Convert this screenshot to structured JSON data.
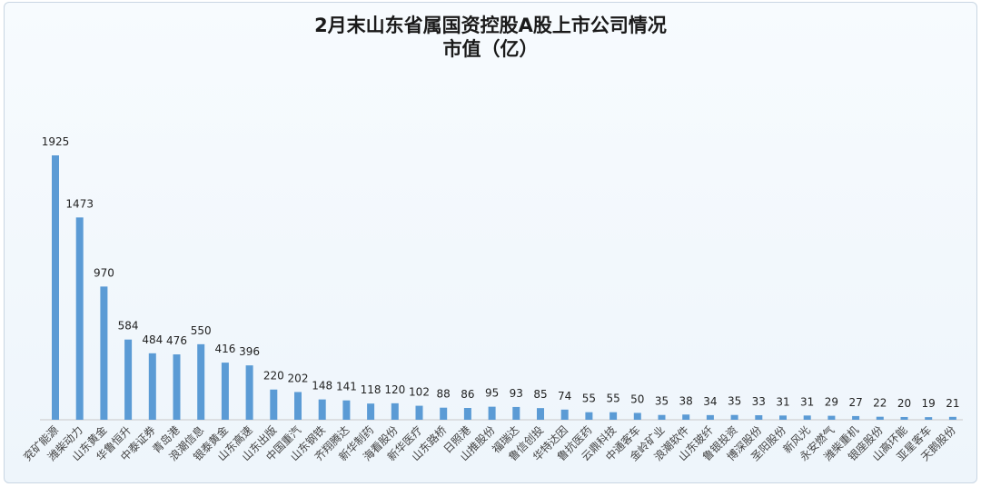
{
  "chart_data": {
    "type": "bar",
    "title": "2月末山东省属国资控股A股上市公司情况",
    "subtitle": "市值（亿）",
    "categories": [
      "兖矿能源",
      "潍柴动力",
      "山东黄金",
      "华鲁恒升",
      "中泰证券",
      "青岛港",
      "浪潮信息",
      "银泰黄金",
      "山东高速",
      "山东出版",
      "中国重汽",
      "山东钢铁",
      "齐翔腾达",
      "新华制药",
      "海看股份",
      "新华医疗",
      "山东路桥",
      "日照港",
      "山推股份",
      "福瑞达",
      "鲁信创投",
      "华特达因",
      "鲁抗医药",
      "云鼎科技",
      "中通客车",
      "金岭矿业",
      "浪潮软件",
      "山东玻纤",
      "鲁银投资",
      "博深股份",
      "圣阳股份",
      "新风光",
      "永安燃气",
      "潍柴重机",
      "银座股份",
      "山高环能",
      "亚星客车",
      "天鹅股份"
    ],
    "values": [
      1925,
      1473,
      970,
      584,
      484,
      476,
      550,
      416,
      396,
      220,
      202,
      148,
      141,
      118,
      120,
      102,
      88,
      86,
      95,
      93,
      85,
      74,
      55,
      55,
      50,
      35,
      38,
      34,
      35,
      33,
      31,
      31,
      29,
      27,
      22,
      20,
      19,
      21
    ],
    "bar_color": "#5b9bd5",
    "grid": false,
    "legend": "none"
  }
}
